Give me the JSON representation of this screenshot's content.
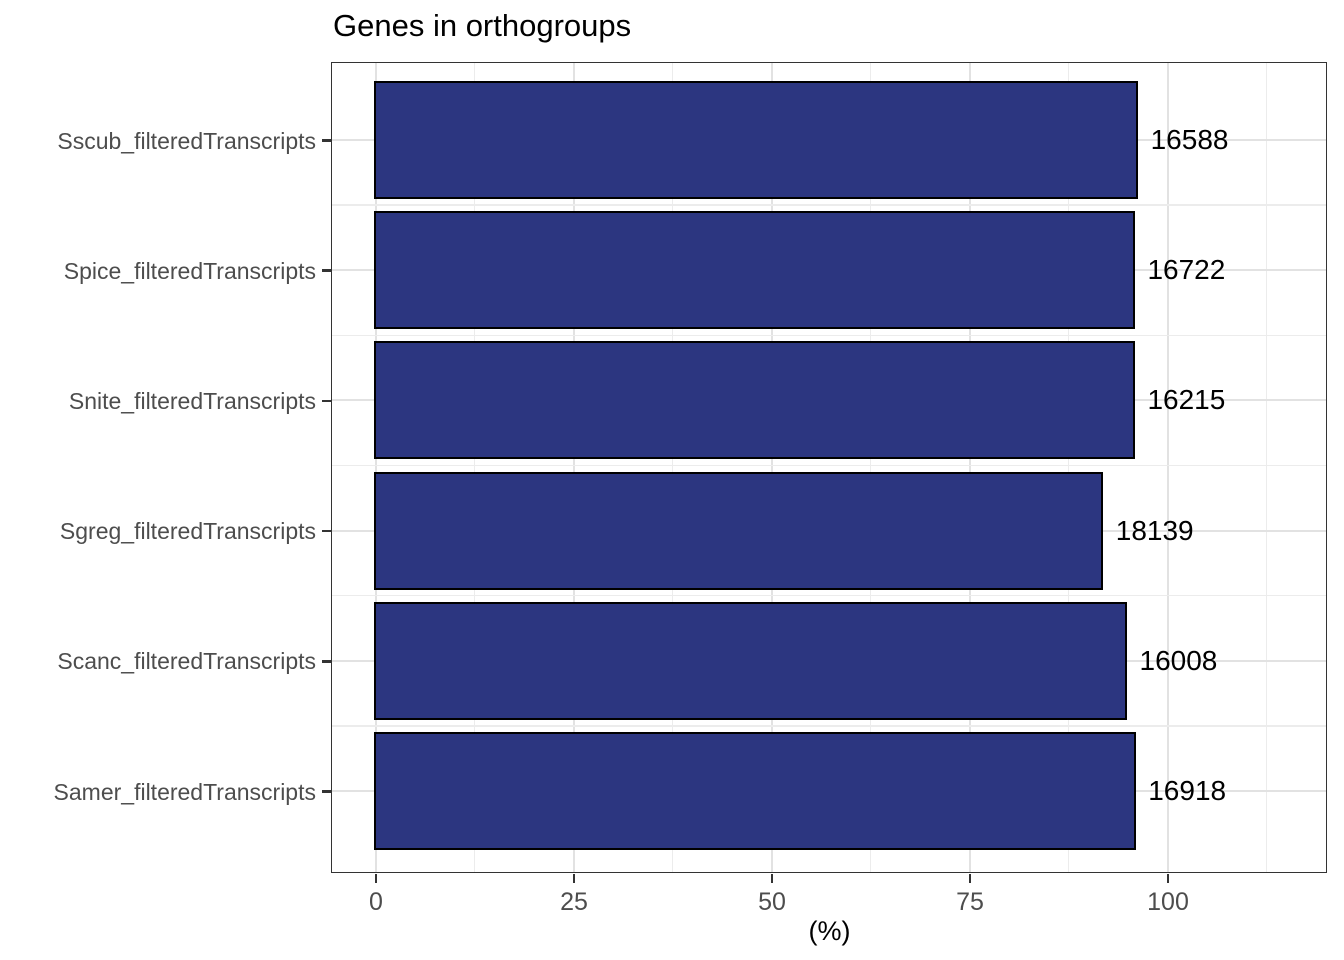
{
  "chart_data": {
    "type": "bar",
    "orientation": "horizontal",
    "title": "Genes in orthogroups",
    "xlabel": "(%)",
    "ylabel": "",
    "legend_position": "none",
    "grid": "major and minor, light gray on white panel, black panel border",
    "categories": [
      "Sscub_filteredTranscripts",
      "Spice_filteredTranscripts",
      "Snite_filteredTranscripts",
      "Sgreg_filteredTranscripts",
      "Scanc_filteredTranscripts",
      "Samer_filteredTranscripts"
    ],
    "series": [
      {
        "name": "Genes in orthogroups (%)",
        "values": [
          96.1,
          95.7,
          95.7,
          91.7,
          94.7,
          95.8
        ]
      }
    ],
    "bar_value_labels": [
      "16588",
      "16722",
      "16215",
      "18139",
      "16008",
      "16918"
    ],
    "x_tick_labels": [
      "0",
      "25",
      "50",
      "75",
      "100"
    ],
    "x_tick_values": [
      0,
      25,
      50,
      75,
      100
    ],
    "x_minor_tick_values": [
      12.5,
      37.5,
      62.5,
      87.5,
      112.5
    ],
    "xlim": [
      -5.5,
      120.4
    ],
    "colors": {
      "bar_fill": "#2c3680",
      "bar_border": "#000000",
      "grid_major": "#e2e2e2",
      "grid_minor": "#ececec",
      "panel_border": "#333333",
      "axis_text": "#4d4d4d",
      "title_text": "#000000",
      "value_label_text": "#000000",
      "background": "#ffffff"
    }
  }
}
